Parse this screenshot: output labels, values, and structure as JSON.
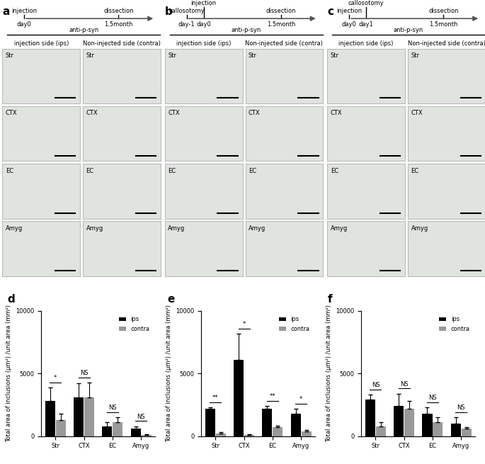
{
  "panels": [
    {
      "label": "a",
      "timeline": [
        {
          "above": "injection",
          "below": "day0"
        },
        {
          "above": "dissection",
          "below": "1.5month"
        }
      ],
      "stain": "anti-p-syn",
      "sides": [
        "injection side (ips)",
        "Non-injected side (contra)"
      ],
      "regions": [
        "Str",
        "CTX",
        "EC",
        "Amyg"
      ]
    },
    {
      "label": "b",
      "timeline": [
        {
          "above": "callosotomy",
          "below": "day-1"
        },
        {
          "above": "injection",
          "below": "day0"
        },
        {
          "above": "dissection",
          "below": "1.5month"
        }
      ],
      "stain": "anti-p-syn",
      "sides": [
        "injection side (ips)",
        "Non-injected side (contra)"
      ],
      "regions": [
        "Str",
        "CTX",
        "EC",
        "Amyg"
      ]
    },
    {
      "label": "c",
      "timeline": [
        {
          "above": "injection",
          "below": "day0"
        },
        {
          "above": "callosotomy",
          "below": "day1"
        },
        {
          "above": "dissection",
          "below": "1.5month"
        }
      ],
      "stain": "anti-p-syn",
      "sides": [
        "injection side (ips)",
        "Non-injected side (contra)"
      ],
      "regions": [
        "Str",
        "CTX",
        "EC",
        "Amyg"
      ]
    }
  ],
  "chart_data": [
    {
      "type": "bar",
      "title": "d",
      "y_label": "Total area of inclusions (μm²) /unit area (mm²)",
      "categories": [
        "Str",
        "CTX",
        "EC",
        "Amyg"
      ],
      "series": [
        {
          "name": "ips",
          "color": "#000000",
          "values": [
            2800,
            3100,
            800,
            600
          ],
          "errors": [
            1100,
            1100,
            300,
            200
          ]
        },
        {
          "name": "contra",
          "color": "#999999",
          "values": [
            1300,
            3100,
            1100,
            100
          ],
          "errors": [
            500,
            1200,
            400,
            50
          ]
        }
      ],
      "annotations": [
        "*",
        "NS",
        "NS",
        "NS"
      ],
      "ylim": [
        0,
        10000
      ],
      "yticks": [
        0,
        5000,
        10000
      ],
      "legend": "upper right"
    },
    {
      "type": "bar",
      "title": "e",
      "y_label": "Total area of inclusions (μm²) /unit area (mm²)",
      "categories": [
        "Str",
        "CTX",
        "EC",
        "Amyg"
      ],
      "series": [
        {
          "name": "ips",
          "color": "#000000",
          "values": [
            2200,
            6100,
            2200,
            1800
          ],
          "errors": [
            100,
            2100,
            200,
            400
          ]
        },
        {
          "name": "contra",
          "color": "#999999",
          "values": [
            200,
            100,
            700,
            400
          ],
          "errors": [
            100,
            50,
            150,
            100
          ]
        }
      ],
      "annotations": [
        "**",
        "*",
        "**",
        "*"
      ],
      "ylim": [
        0,
        10000
      ],
      "yticks": [
        0,
        5000,
        10000
      ],
      "legend": "upper right"
    },
    {
      "type": "bar",
      "title": "f",
      "y_label": "Total area of inclusions (μm²) /unit area (mm²)",
      "categories": [
        "Str",
        "CTX",
        "EC",
        "Amyg"
      ],
      "series": [
        {
          "name": "ips",
          "color": "#000000",
          "values": [
            2900,
            2400,
            1800,
            1000
          ],
          "errors": [
            400,
            1000,
            500,
            500
          ]
        },
        {
          "name": "contra",
          "color": "#999999",
          "values": [
            800,
            2200,
            1100,
            600
          ],
          "errors": [
            300,
            600,
            400,
            100
          ]
        }
      ],
      "annotations": [
        "NS",
        "NS",
        "NS",
        "NS"
      ],
      "ylim": [
        0,
        10000
      ],
      "yticks": [
        0,
        5000,
        10000
      ],
      "legend": "upper right"
    }
  ]
}
